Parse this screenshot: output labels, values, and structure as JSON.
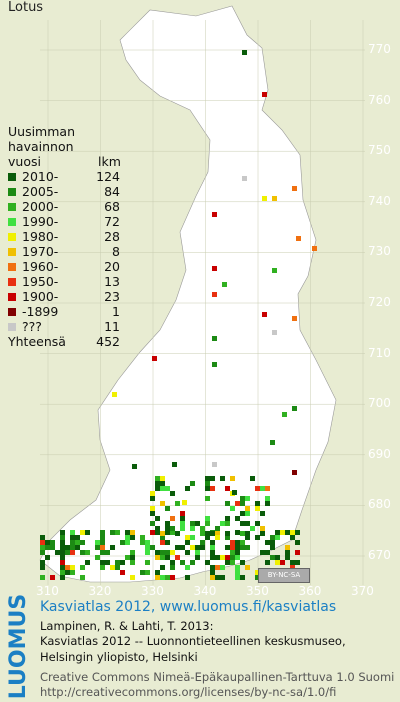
{
  "title": "Lotus",
  "legend": {
    "header_lines": [
      "Uusimman",
      "havainnon",
      "vuosi"
    ],
    "count_header": "lkm",
    "rows": [
      {
        "label": "2010-",
        "count": "124",
        "color": "#0a5c0a"
      },
      {
        "label": "2005-",
        "count": "84",
        "color": "#1c8a14"
      },
      {
        "label": "2000-",
        "count": "68",
        "color": "#30b020"
      },
      {
        "label": "1990-",
        "count": "72",
        "color": "#40e040"
      },
      {
        "label": "1980-",
        "count": "28",
        "color": "#f0f000"
      },
      {
        "label": "1970-",
        "count": "8",
        "color": "#f0c000"
      },
      {
        "label": "1960-",
        "count": "20",
        "color": "#f07010"
      },
      {
        "label": "1950-",
        "count": "13",
        "color": "#e83010"
      },
      {
        "label": "1900-",
        "count": "23",
        "color": "#c80000"
      },
      {
        "label": "-1899",
        "count": "1",
        "color": "#800000"
      },
      {
        "label": "???",
        "count": "11",
        "color": "#c8c8c8"
      }
    ],
    "total_label": "Yhteensä",
    "total_count": "452"
  },
  "axes": {
    "y_ticks": [
      "770",
      "760",
      "750",
      "740",
      "730",
      "720",
      "710",
      "700",
      "690",
      "680",
      "670"
    ],
    "x_ticks": [
      "310",
      "320",
      "330",
      "340",
      "350",
      "360",
      "370"
    ]
  },
  "cc_badge": "BY-NC-SA",
  "logo_text": "LUOMUS",
  "credits": {
    "atlas": "Kasviatlas 2012, www.luomus.fi/kasviatlas",
    "line1": "Lampinen, R. & Lahti, T. 2013:",
    "line2": "Kasviatlas 2012 -- Luonnontieteellinen keskusmuseo,",
    "line3": "Helsingin yliopisto, Helsinki",
    "license1": "Creative Commons Nimeä-Epäkaupallinen-Tarttuva 1.0 Suomi",
    "license2": "http://creativecommons.org/licenses/by-nc-sa/1.0/fi"
  },
  "colors": {
    "background": "#e8ecd2",
    "land": "#ffffff",
    "grid": "#c8ccb0",
    "accent": "#1b7fc4"
  }
}
